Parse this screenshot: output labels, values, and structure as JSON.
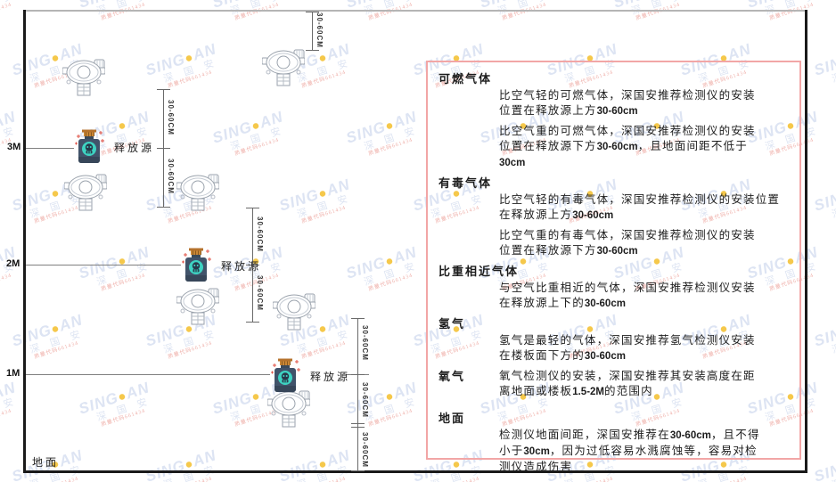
{
  "watermark": {
    "brand_pre": "SING",
    "brand_dot": "●",
    "brand_post": "AN",
    "company": "深 国 安",
    "code": "质量代码661434"
  },
  "diagram": {
    "ground_label": "地面",
    "release_source_label": "释放源",
    "dim_label": "30-60CM",
    "axis_marks": [
      {
        "label": "3M"
      },
      {
        "label": "2M"
      },
      {
        "label": "1M"
      }
    ]
  },
  "panel": {
    "sections": [
      {
        "heading": "可燃气体",
        "paragraphs": [
          {
            "lines": [
              [
                {
                  "t": "比空气轻的可燃气体，深国安推荐检测仪的安装"
                }
              ],
              [
                {
                  "t": "位置在释放源上方"
                },
                {
                  "t": "30-60cm",
                  "b": true
                }
              ]
            ]
          },
          {
            "lines": [
              [
                {
                  "t": "比空气重的可燃气体，深国安推荐检测仪的安装"
                }
              ],
              [
                {
                  "t": "位置在释放源下方"
                },
                {
                  "t": "30-60cm",
                  "b": true
                },
                {
                  "t": "，且地面间距不低于"
                }
              ],
              [
                {
                  "t": "30cm",
                  "b": true
                }
              ]
            ]
          }
        ]
      },
      {
        "heading": "有毒气体",
        "paragraphs": [
          {
            "lines": [
              [
                {
                  "t": "比空气轻的有毒气体，深国安推荐检测仪的安装位置"
                }
              ],
              [
                {
                  "t": "在释放源上方"
                },
                {
                  "t": "30-60cm",
                  "b": true
                }
              ]
            ]
          },
          {
            "lines": [
              [
                {
                  "t": "比空气重的有毒气体，深国安推荐检测仪的安装"
                }
              ],
              [
                {
                  "t": "位置在释放源下方"
                },
                {
                  "t": "30-60cm",
                  "b": true
                }
              ]
            ]
          }
        ]
      },
      {
        "heading": "比重相近气体",
        "paragraphs": [
          {
            "lines": [
              [
                {
                  "t": "与空气比重相近的气体，深国安推荐检测仪安装"
                }
              ],
              [
                {
                  "t": "在释放源上下的"
                },
                {
                  "t": "30-60cm",
                  "b": true
                }
              ]
            ]
          }
        ]
      },
      {
        "heading": "氢气",
        "paragraphs": [
          {
            "lines": [
              [
                {
                  "t": "氢气是最轻的气体，深国安推荐氢气检测仪安装"
                }
              ],
              [
                {
                  "t": "在楼板面下方的"
                },
                {
                  "t": "30-60cm",
                  "b": true
                }
              ]
            ]
          }
        ]
      },
      {
        "heading": "氧气",
        "inline_heading": true,
        "paragraphs": [
          {
            "lines": [
              [
                {
                  "t": "氧气检测仪的安装，深国安推荐其安装高度在距"
                }
              ],
              [
                {
                  "t": "离地面或楼板"
                },
                {
                  "t": "1.5-2M",
                  "b": true
                },
                {
                  "t": "的范围内"
                }
              ]
            ]
          }
        ]
      },
      {
        "heading": "地面",
        "extra_gap": true,
        "paragraphs": [
          {
            "lines": [
              [
                {
                  "t": "检测仪地面间距，深国安推荐在"
                },
                {
                  "t": "30-60cm",
                  "b": true
                },
                {
                  "t": "，且不得"
                }
              ],
              [
                {
                  "t": "小于"
                },
                {
                  "t": "30cm",
                  "b": true
                },
                {
                  "t": "，因为过低容易水溅腐蚀等，容易对检"
                }
              ],
              [
                {
                  "t": "测仪造成伤害"
                }
              ]
            ]
          }
        ]
      }
    ]
  }
}
